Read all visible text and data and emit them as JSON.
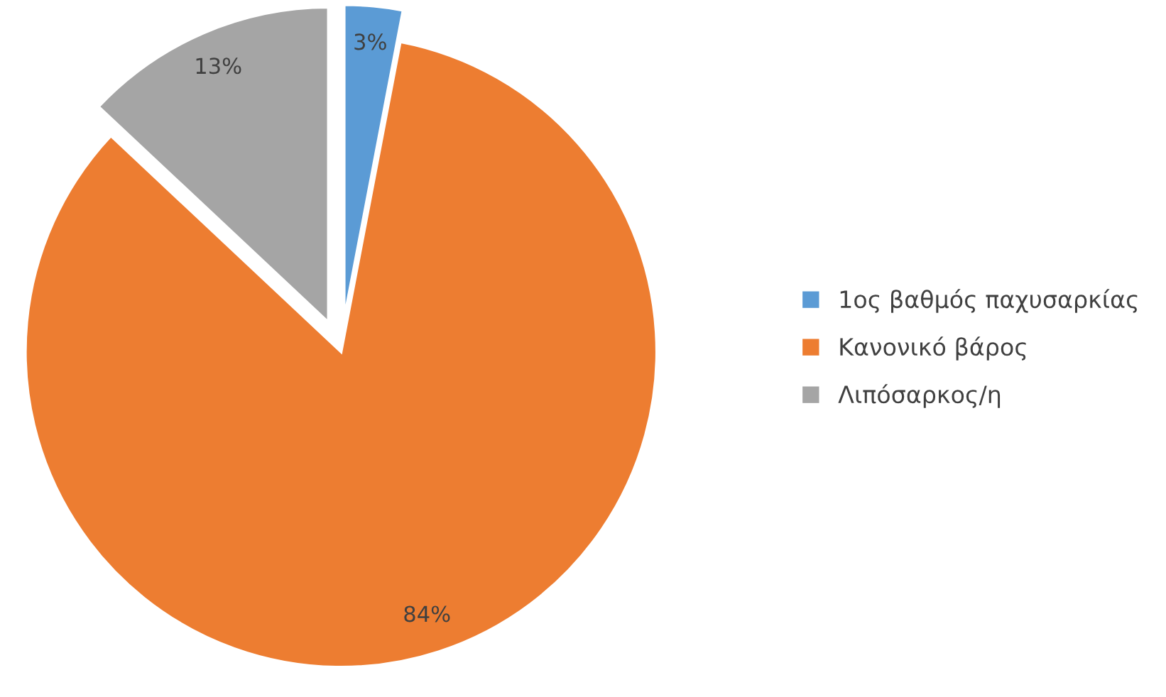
{
  "chart_data": {
    "type": "pie",
    "categories": [
      "1ος βαθμός παχυσαρκίας",
      "Κανονικό βάρος",
      "Λιπόσαρκος/η"
    ],
    "values": [
      3,
      84,
      13
    ],
    "colors": [
      "#5b9bd5",
      "#ed7d31",
      "#a5a5a5"
    ],
    "value_labels": [
      "3%",
      "84%",
      "13%"
    ],
    "legend": "right"
  }
}
